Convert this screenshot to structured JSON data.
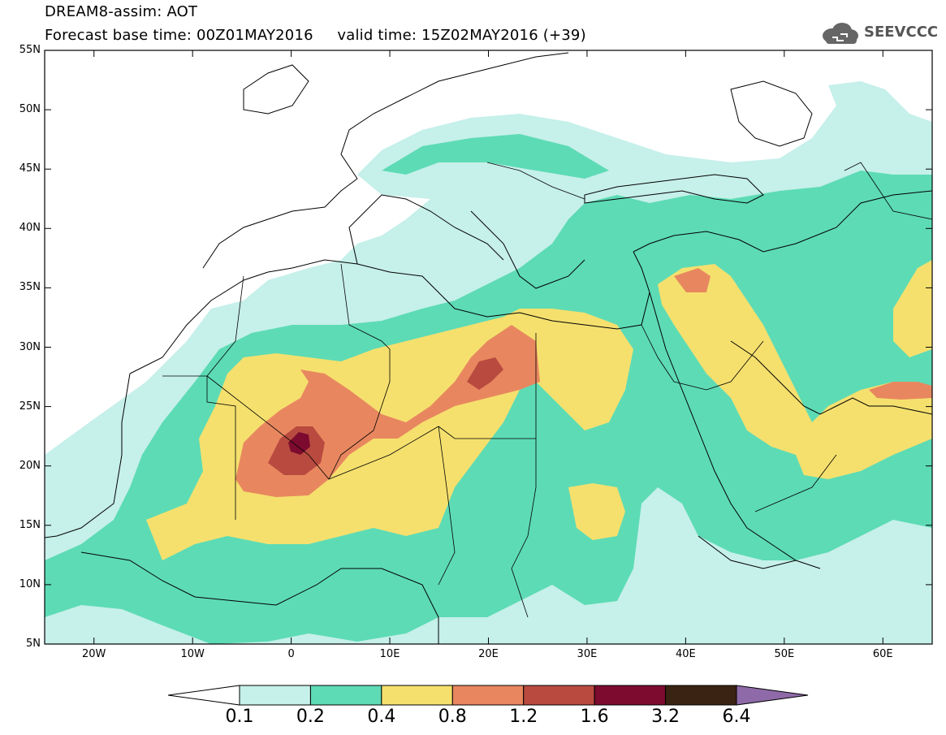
{
  "header": {
    "title_line1": "DREAM8-assim: AOT",
    "title_line2": "Forecast base time: 00Z01MAY2016     valid time: 15Z02MAY2016 (+39)",
    "logo_text": "SEEVCCC"
  },
  "map": {
    "lon_labels": [
      "20W",
      "10W",
      "0",
      "10E",
      "20E",
      "30E",
      "40E",
      "50E",
      "60E"
    ],
    "lat_labels": [
      "55N",
      "50N",
      "45N",
      "40N",
      "35N",
      "30N",
      "25N",
      "20N",
      "15N",
      "10N",
      "5N"
    ],
    "lon_range": [
      -25,
      65
    ],
    "lat_range": [
      5,
      55
    ]
  },
  "colorbar": {
    "labels": [
      "0.1",
      "0.2",
      "0.4",
      "0.8",
      "1.2",
      "1.6",
      "3.2",
      "6.4"
    ],
    "colors": [
      "#ffffff",
      "#c6f0ea",
      "#5ddbb5",
      "#f5e06e",
      "#e8875f",
      "#b84a3f",
      "#7d0b2f",
      "#3a2312",
      "#8e6aa8"
    ]
  },
  "colors": {
    "land_outline": "#000000",
    "background": "#ffffff"
  }
}
